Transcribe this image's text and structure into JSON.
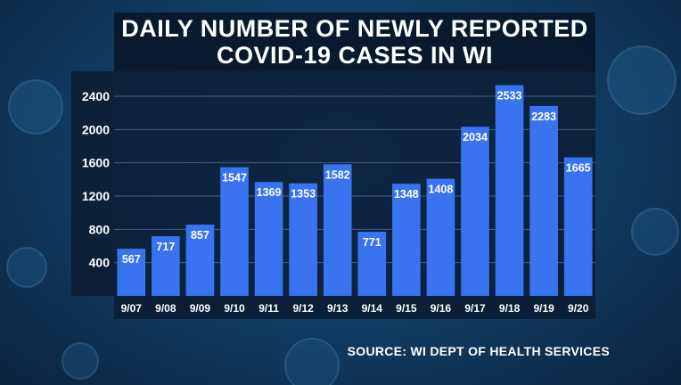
{
  "title_lines": [
    "DAILY NUMBER OF NEWLY REPORTED",
    "COVID-19 CASES IN WI"
  ],
  "source": "SOURCE: WI DEPT OF HEALTH SERVICES",
  "colors": {
    "bar": "#3a73f0",
    "plot_bg": "#0b1c33",
    "label_bg": "#0b1c33",
    "gridline": "#6f8fb5",
    "text": "#ffffff"
  },
  "chart_data": {
    "type": "bar",
    "title": "DAILY NUMBER OF NEWLY REPORTED COVID-19 CASES IN WI",
    "xlabel": "",
    "ylabel": "",
    "categories": [
      "9/07",
      "9/08",
      "9/09",
      "9/10",
      "9/11",
      "9/12",
      "9/13",
      "9/14",
      "9/15",
      "9/16",
      "9/17",
      "9/18",
      "9/19",
      "9/20"
    ],
    "values": [
      567,
      717,
      857,
      1547,
      1369,
      1353,
      1582,
      771,
      1348,
      1408,
      2034,
      2533,
      2283,
      1665
    ],
    "yticks": [
      400,
      800,
      1200,
      1600,
      2000,
      2400
    ],
    "ylim": [
      0,
      2700
    ],
    "grid": true,
    "data_labels": true,
    "legend": "none"
  }
}
